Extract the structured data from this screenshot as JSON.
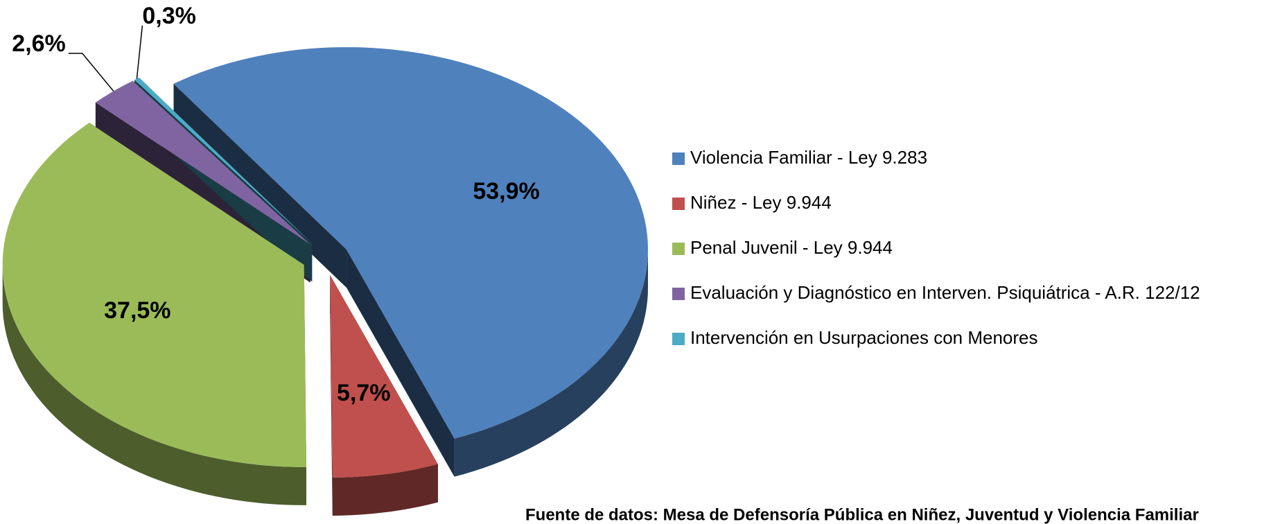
{
  "chart_data": {
    "type": "pie",
    "categories": [
      "Violencia Familiar - Ley 9.283",
      "Niñez - Ley 9.944",
      "Penal Juvenil - Ley 9.944",
      "Evaluación y Diagnóstico en Interven. Psiquiátrica - A.R. 122/12",
      "Intervención en Usurpaciones con Menores"
    ],
    "values": [
      53.9,
      5.7,
      37.5,
      2.6,
      0.3
    ],
    "value_labels": [
      "53,9%",
      "5,7%",
      "37,5%",
      "2,6%",
      "0,3%"
    ],
    "colors": [
      "#4f81bd",
      "#c0504d",
      "#9bbb59",
      "#8064a2",
      "#4bacc6"
    ],
    "legend": "right",
    "annotation": "Fuente de datos: Mesa de Defensoría Pública en Niñez, Juventud y Violencia Familiar"
  }
}
